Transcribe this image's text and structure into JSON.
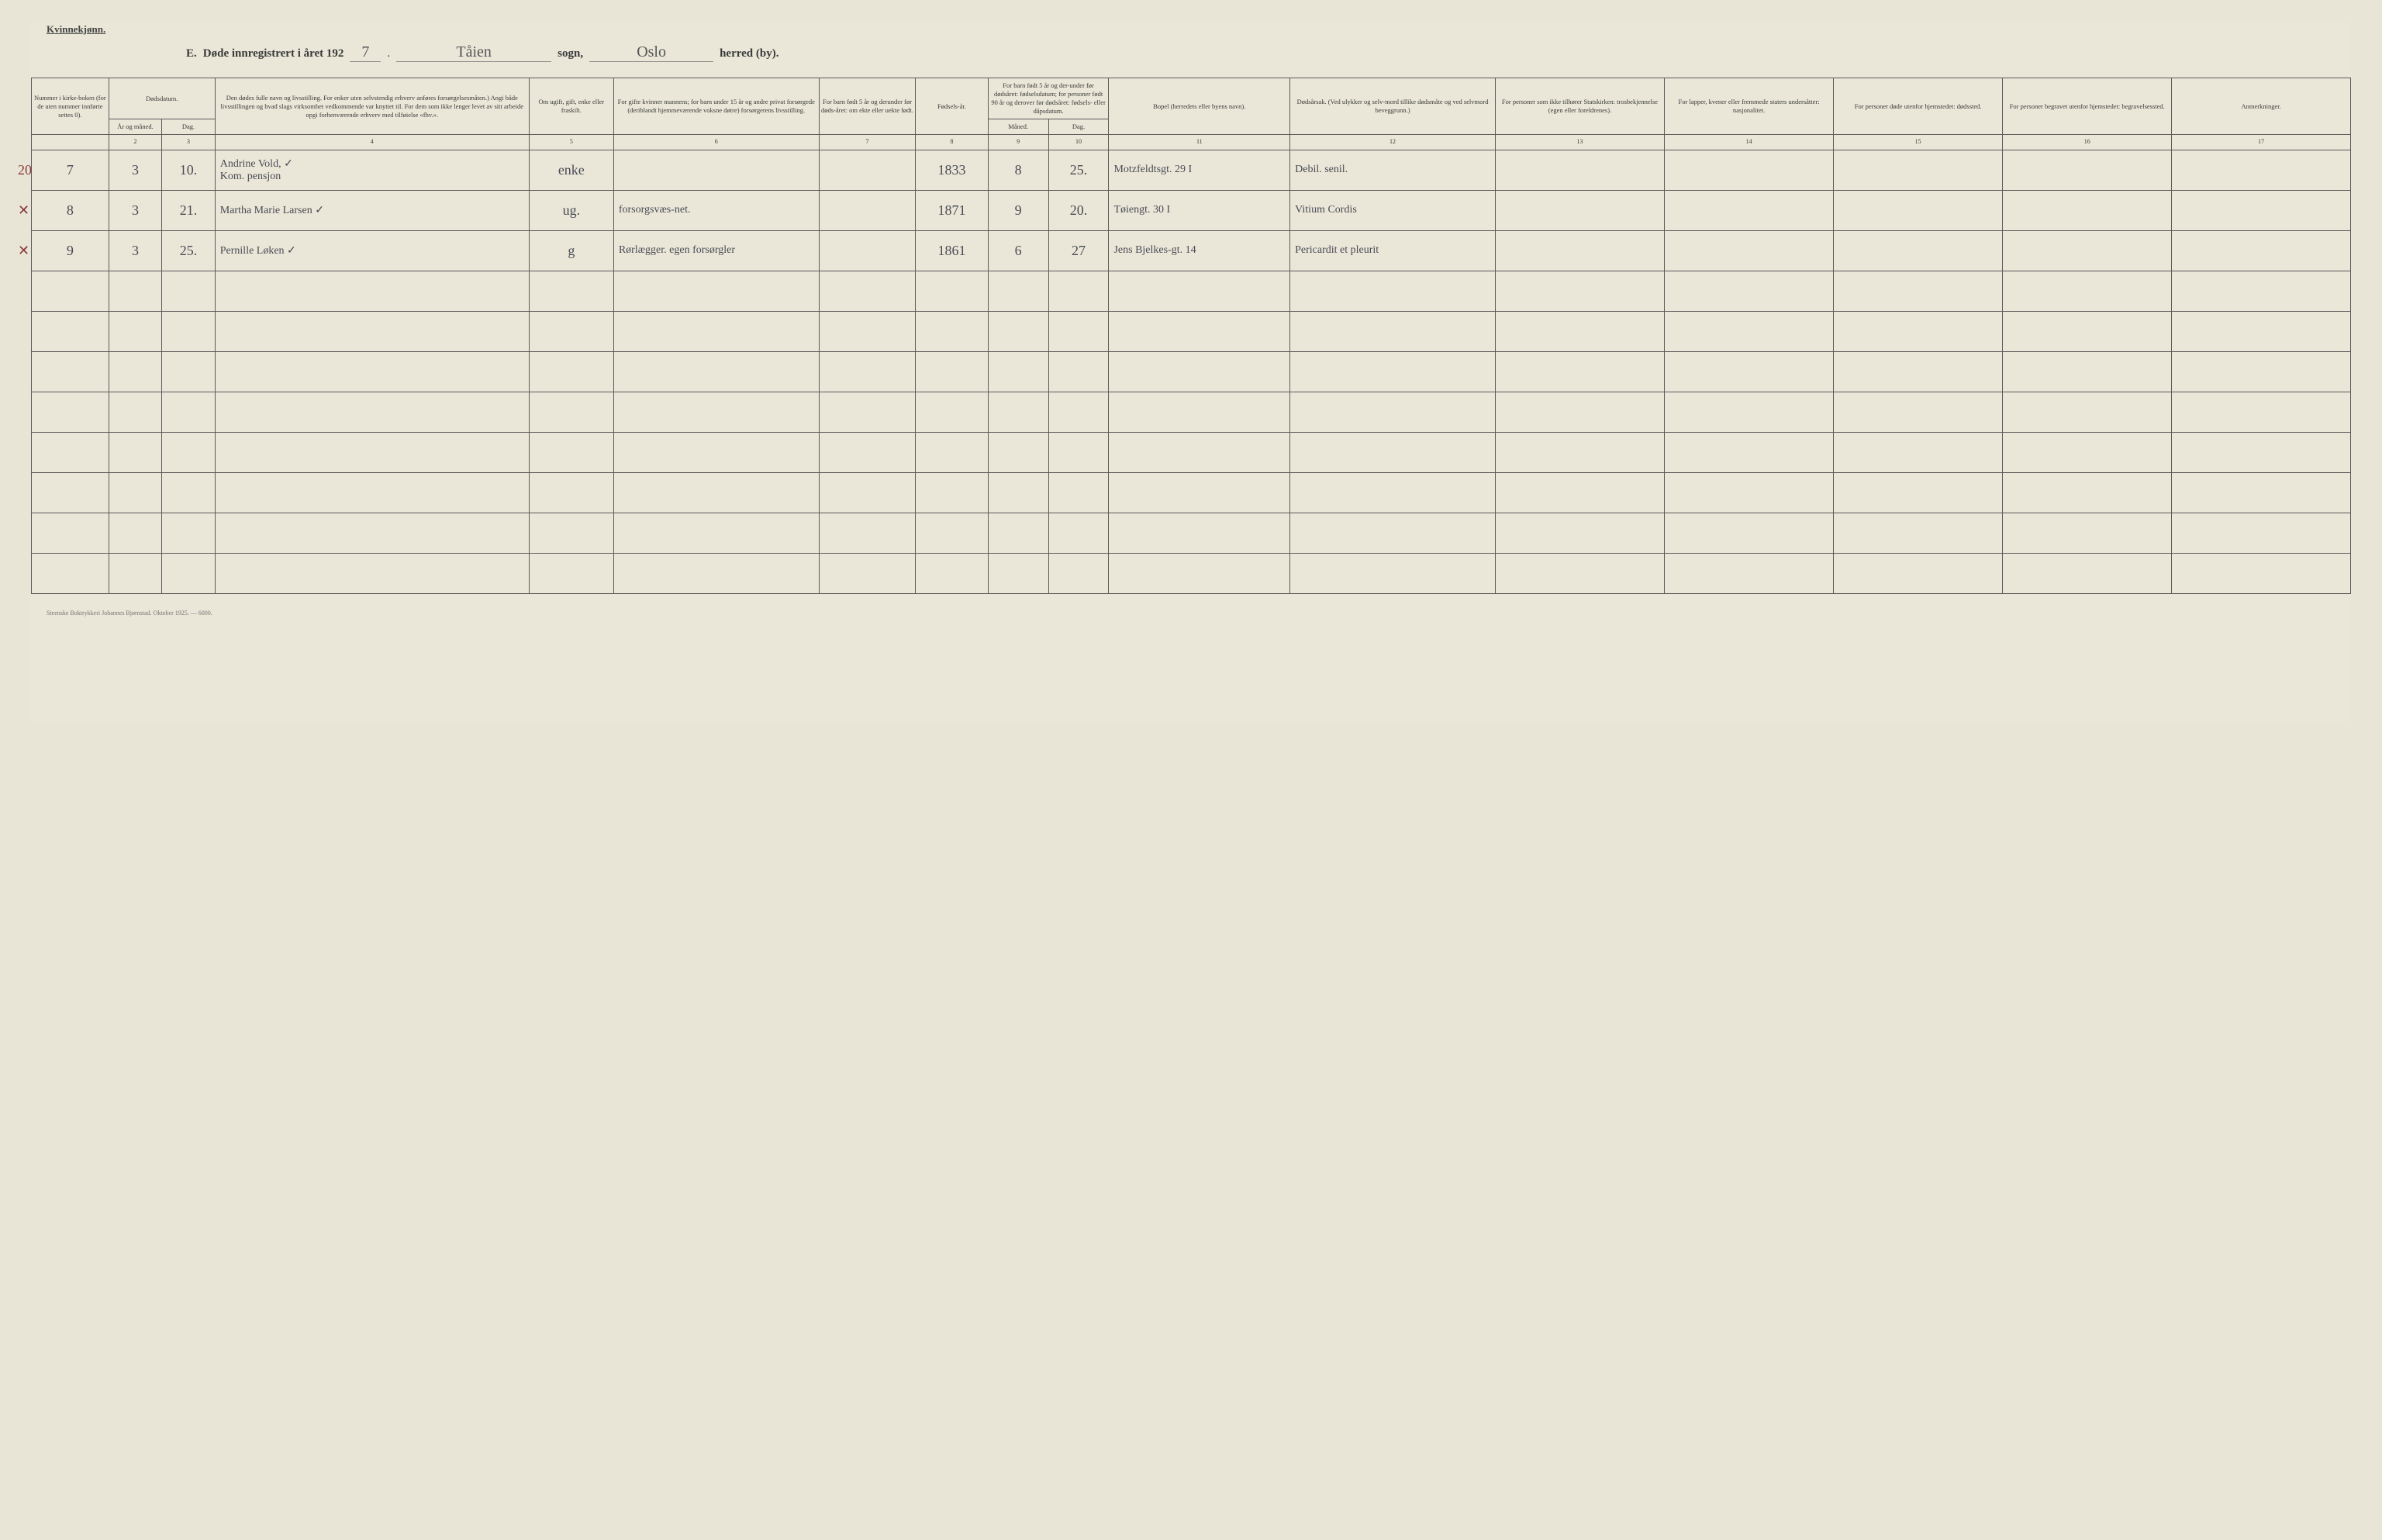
{
  "header": {
    "gender_label": "Kvinnekjønn.",
    "form_letter": "E.",
    "title_prefix": "Døde innregistrert i året 192",
    "year_suffix": "7",
    "parish_hand": "Tåien",
    "parish_label": "sogn,",
    "district_hand": "Oslo",
    "district_label": "herred (by)."
  },
  "columns": {
    "widths_pct": [
      3.2,
      2.2,
      2.2,
      13,
      3.5,
      8.5,
      4,
      3,
      2.5,
      2.5,
      7.5,
      8.5,
      7,
      7,
      7,
      7,
      7.4
    ],
    "c1": "Nummer i kirke-boken (for de uten nummer innførte settes 0).",
    "c2_group": "Dødsdatum.",
    "c2a": "År og måned.",
    "c2b": "Dag.",
    "c4": "Den dødes fulle navn og livsstilling. For enker uten selvstendig erhverv anføres forsørgelsesmåten.) Angi både livsstillingen og hvad slags virksomhet vedkommende var knyttet til. For dem som ikke lenger levet av sitt arbeide opgi forhenværende erhverv med tilføielse «fhv.».",
    "c5": "Om ugift, gift, enke eller fraskilt.",
    "c6": "For gifte kvinner mannens; for barn under 15 år og andre privat forsørgede (deriblandt hjemmeværende voksne døtre) forsørgerens livsstilling.",
    "c7": "For barn født 5 år og derunder før døds-året: om ekte eller uekte født.",
    "c8": "Fødsels-år.",
    "c9_group": "For barn født 5 år og der-under før dødsåret: fødselsdatum; for personer født 90 år og derover før dødsåret: fødsels- eller dåpsdatum.",
    "c9a": "Måned.",
    "c9b": "Dag.",
    "c11": "Bopel (herredets eller byens navn).",
    "c12": "Dødsårsak. (Ved ulykker og selv-mord tillike dødsmåte og ved selvmord beveggrunn.)",
    "c13": "For personer som ikke tilhører Statskirken: trosbekjennelse (egen eller foreldrenes).",
    "c14": "For lapper, kvener eller fremmede staters undersåtter: nasjonalitet.",
    "c15": "For personer døde utenfor hjemstedet: dødssted.",
    "c16": "For personer begravet utenfor hjemstedet: begravelsessted.",
    "c17": "Anmerkninger."
  },
  "col_numbers": [
    "",
    "2",
    "3",
    "4",
    "5",
    "6",
    "7",
    "8",
    "9",
    "10",
    "11",
    "12",
    "13",
    "14",
    "15",
    "16",
    "17"
  ],
  "rows": [
    {
      "margin": "20",
      "num": "7",
      "month": "3",
      "day": "10.",
      "name": "Andrine Vold,   ✓\nKom. pensjon",
      "status": "enke",
      "provider": "",
      "legit": "",
      "birth_year": "1833",
      "b_month": "8",
      "b_day": "25.",
      "residence": "Motzfeldtsgt. 29 I",
      "cause": "Debil. senil.",
      "c13": "",
      "c14": "",
      "c15": "",
      "c16": "",
      "c17": ""
    },
    {
      "margin": "✕",
      "num": "8",
      "month": "3",
      "day": "21.",
      "name": "Martha Marie Larsen ✓",
      "status": "ug.",
      "provider": "forsorgsvæs-net.",
      "legit": "",
      "birth_year": "1871",
      "b_month": "9",
      "b_day": "20.",
      "residence": "Tøiengt. 30 I",
      "cause": "Vitium Cordis",
      "c13": "",
      "c14": "",
      "c15": "",
      "c16": "",
      "c17": ""
    },
    {
      "margin": "✕",
      "num": "9",
      "month": "3",
      "day": "25.",
      "name": "Pernille Løken   ✓",
      "status": "g",
      "provider": "Rørlægger. egen forsørgler",
      "legit": "",
      "birth_year": "1861",
      "b_month": "6",
      "b_day": "27",
      "residence": "Jens Bjelkes-gt. 14",
      "cause": "Pericardit et pleurit",
      "c13": "",
      "c14": "",
      "c15": "",
      "c16": "",
      "c17": ""
    }
  ],
  "empty_row_count": 8,
  "footer": "Steenske Boktrykkeri Johannes Bjørnstad. Oktober 1925. — 6000."
}
